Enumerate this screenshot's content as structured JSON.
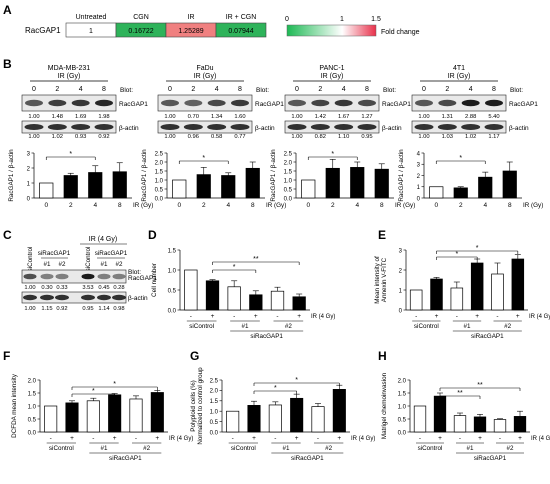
{
  "panels": {
    "A": "A",
    "B": "B",
    "C": "C",
    "D": "D",
    "E": "E",
    "F": "F",
    "G": "G",
    "H": "H"
  },
  "heatmap": {
    "row_label": "RacGAP1",
    "columns": [
      "Untreated",
      "CGN",
      "IR",
      "IR + CGN"
    ],
    "values": [
      "1",
      "0.16722",
      "1.25289",
      "0.07944"
    ],
    "colors": [
      "#ffffff",
      "#2eb35a",
      "#f08080",
      "#2eb35a"
    ],
    "scale_ticks": [
      "0",
      "1",
      "1.5"
    ],
    "scale_label": "Fold change"
  },
  "blot_common": {
    "gy_ticks": [
      "0",
      "2",
      "4",
      "8"
    ],
    "blot_label": "Blot:",
    "target": "RacGAP1",
    "loading": "β-actin",
    "ylabel": "RacGAP1 / β-actin",
    "xlabel": "IR (Gy)",
    "sig": "*"
  },
  "cell_lines": [
    {
      "title": "MDA-MB-231",
      "subtitle": "IR (Gy)",
      "rac_vals": [
        "1.00",
        "1.48",
        "1.69",
        "1.98"
      ],
      "act_vals": [
        "1.00",
        "1.02",
        "0.93",
        "0.92"
      ]
    },
    {
      "title": "FaDu",
      "subtitle": "IR (Gy)",
      "rac_vals": [
        "1.00",
        "0.70",
        "1.34",
        "1.60"
      ],
      "act_vals": [
        "1.00",
        "0.96",
        "0.58",
        "0.77"
      ]
    },
    {
      "title": "PANC-1",
      "subtitle": "IR (Gy)",
      "rac_vals": [
        "1.00",
        "1.42",
        "1.67",
        "1.27"
      ],
      "act_vals": [
        "1.00",
        "0.82",
        "1.10",
        "0.95"
      ]
    },
    {
      "title": "4T1",
      "subtitle": "IR (Gy)",
      "rac_vals": [
        "1.00",
        "1.31",
        "2.88",
        "5.40"
      ],
      "act_vals": [
        "1.00",
        "1.03",
        "1.02",
        "1.17"
      ]
    }
  ],
  "panel_c": {
    "ir_header": "IR (4 Gy)",
    "sirac": "siRacGAP1",
    "sicontrol": "siControl",
    "n1": "#1",
    "n2": "#2",
    "blot_label": "Blot:",
    "target": "RacGAP1",
    "loading": "β-actin",
    "rac_vals": [
      "1.00",
      "0.30",
      "0.33",
      "3.53",
      "0.45",
      "0.28"
    ],
    "act_vals": [
      "1.00",
      "1.15",
      "0.92",
      "0.95",
      "1.14",
      "0.98"
    ]
  },
  "treatment_labels": {
    "signs": [
      "-",
      "+",
      "-",
      "+",
      "-",
      "+"
    ],
    "sicontrol": "siControl",
    "sirac": "siRacGAP1",
    "n1": "#1",
    "n2": "#2",
    "ir": "IR (4 Gy)",
    "sig": "*",
    "sig2": "**"
  },
  "chart_data": [
    {
      "panel": "B",
      "type": "bar",
      "title": "MDA-MB-231",
      "categories": [
        "0",
        "2",
        "4",
        "8"
      ],
      "values": [
        1.0,
        1.5,
        1.7,
        1.75
      ],
      "errors": [
        0,
        0.15,
        0.45,
        0.6
      ],
      "ylim": [
        0,
        3
      ],
      "yticks": [
        "0",
        "1",
        "2",
        "3"
      ],
      "ylabel": "RacGAP1 / β-actin",
      "xlabel": "IR (Gy)"
    },
    {
      "panel": "B",
      "type": "bar",
      "title": "FaDu",
      "categories": [
        "0",
        "2",
        "4",
        "8"
      ],
      "values": [
        1.0,
        1.3,
        1.25,
        1.65
      ],
      "errors": [
        0,
        0.4,
        0.15,
        0.35
      ],
      "ylim": [
        0,
        2.5
      ],
      "yticks": [
        "0.0",
        "0.5",
        "1.0",
        "1.5",
        "2.0",
        "2.5"
      ],
      "ylabel": "RacGAP1 / β-actin",
      "xlabel": "IR (Gy)"
    },
    {
      "panel": "B",
      "type": "bar",
      "title": "PANC-1",
      "categories": [
        "0",
        "2",
        "4",
        "8"
      ],
      "values": [
        1.0,
        1.65,
        1.7,
        1.6
      ],
      "errors": [
        0,
        0.5,
        0.3,
        0.3
      ],
      "ylim": [
        0,
        2.5
      ],
      "yticks": [
        "0.0",
        "0.5",
        "1.0",
        "1.5",
        "2.0",
        "2.5"
      ],
      "ylabel": "RacGAP1 / β-actin",
      "xlabel": "IR (Gy)"
    },
    {
      "panel": "B",
      "type": "bar",
      "title": "4T1",
      "categories": [
        "0",
        "2",
        "4",
        "8"
      ],
      "values": [
        1.0,
        0.9,
        1.85,
        2.4
      ],
      "errors": [
        0,
        0.1,
        0.45,
        0.8
      ],
      "ylim": [
        0,
        4
      ],
      "yticks": [
        "0",
        "1",
        "2",
        "3",
        "4"
      ],
      "ylabel": "RacGAP1 / β-actin",
      "xlabel": "IR (Gy)"
    },
    {
      "panel": "D",
      "type": "bar",
      "ylabel": "Cell number",
      "values": [
        1.0,
        0.73,
        0.58,
        0.38,
        0.47,
        0.33
      ],
      "errors": [
        0,
        0.03,
        0.15,
        0.1,
        0.1,
        0.07
      ],
      "ylim": [
        0,
        1.5
      ],
      "yticks": [
        "0.0",
        "0.5",
        "1.0",
        "1.5"
      ]
    },
    {
      "panel": "E",
      "type": "bar",
      "ylabel": "Mean intensity of Annexin V-FITC",
      "values": [
        1.0,
        1.55,
        1.1,
        2.35,
        1.8,
        2.55
      ],
      "errors": [
        0,
        0.08,
        0.3,
        0.2,
        0.55,
        0.22
      ],
      "ylim": [
        0,
        3
      ],
      "yticks": [
        "0",
        "1",
        "2",
        "3"
      ]
    },
    {
      "panel": "F",
      "type": "bar",
      "ylabel": "DCFDA mean intensity",
      "values": [
        1.0,
        1.12,
        1.2,
        1.43,
        1.27,
        1.52
      ],
      "errors": [
        0,
        0.08,
        0.1,
        0.05,
        0.12,
        0.08
      ],
      "ylim": [
        0,
        2
      ],
      "yticks": [
        "0.0",
        "0.5",
        "1.0",
        "1.5",
        "2.0"
      ]
    },
    {
      "panel": "G",
      "type": "bar",
      "ylabel": "Polyploid cells (%) Normalized to control group",
      "values": [
        1.0,
        1.28,
        1.3,
        1.62,
        1.22,
        2.05
      ],
      "errors": [
        0,
        0.2,
        0.15,
        0.2,
        0.15,
        0.2
      ],
      "ylim": [
        0,
        2.5
      ],
      "yticks": [
        "0.0",
        "0.5",
        "1.0",
        "1.5",
        "2.0",
        "2.5"
      ]
    },
    {
      "panel": "H",
      "type": "bar",
      "ylabel": "Matrigel chemoinvasion",
      "values": [
        1.0,
        1.38,
        0.63,
        0.58,
        0.48,
        0.6
      ],
      "errors": [
        0,
        0.12,
        0.1,
        0.1,
        0.03,
        0.2
      ],
      "ylim": [
        0,
        2
      ],
      "yticks": [
        "0.0",
        "0.5",
        "1.0",
        "1.5",
        "2.0"
      ]
    }
  ]
}
